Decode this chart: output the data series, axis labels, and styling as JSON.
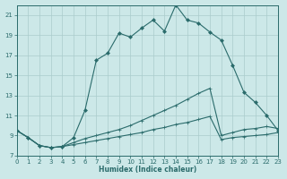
{
  "xlabel": "Humidex (Indice chaleur)",
  "background_color": "#cce8e8",
  "grid_color": "#aacccc",
  "line_color": "#2a6b6b",
  "xlim": [
    0,
    23
  ],
  "ylim": [
    7,
    22
  ],
  "xticks": [
    0,
    1,
    2,
    3,
    4,
    5,
    6,
    7,
    8,
    9,
    10,
    11,
    12,
    13,
    14,
    15,
    16,
    17,
    18,
    19,
    20,
    21,
    22,
    23
  ],
  "yticks": [
    7,
    9,
    11,
    13,
    15,
    17,
    19,
    21
  ],
  "line1_x": [
    0,
    1,
    2,
    3,
    4,
    5,
    6,
    7,
    8,
    9,
    10,
    11,
    12,
    13,
    14,
    15,
    16,
    17,
    18,
    19,
    20,
    21,
    22,
    23
  ],
  "line1_y": [
    9.5,
    8.8,
    8.0,
    7.8,
    7.9,
    8.8,
    11.5,
    16.5,
    17.2,
    19.2,
    18.8,
    19.7,
    20.5,
    19.4,
    22.0,
    20.5,
    20.2,
    19.3,
    18.5,
    16.0,
    13.3,
    12.3,
    11.0,
    9.5
  ],
  "line2_x": [
    0,
    1,
    2,
    3,
    4,
    5,
    6,
    7,
    8,
    9,
    10,
    11,
    12,
    13,
    14,
    15,
    16,
    17,
    18,
    19,
    20,
    21,
    22,
    23
  ],
  "line2_y": [
    9.5,
    8.8,
    8.0,
    7.8,
    7.9,
    8.3,
    8.7,
    9.0,
    9.3,
    9.6,
    10.0,
    10.5,
    11.0,
    11.5,
    12.0,
    12.6,
    13.2,
    13.7,
    9.0,
    9.3,
    9.6,
    9.7,
    9.9,
    9.7
  ],
  "line3_x": [
    0,
    1,
    2,
    3,
    4,
    5,
    6,
    7,
    8,
    9,
    10,
    11,
    12,
    13,
    14,
    15,
    16,
    17,
    18,
    19,
    20,
    21,
    22,
    23
  ],
  "line3_y": [
    9.5,
    8.8,
    8.0,
    7.8,
    7.9,
    8.1,
    8.3,
    8.5,
    8.7,
    8.9,
    9.1,
    9.3,
    9.6,
    9.8,
    10.1,
    10.3,
    10.6,
    10.9,
    8.6,
    8.8,
    8.9,
    9.0,
    9.1,
    9.3
  ],
  "xlabel_fontsize": 5.5,
  "tick_fontsize": 5,
  "linewidth": 0.8,
  "markersize": 2.5
}
